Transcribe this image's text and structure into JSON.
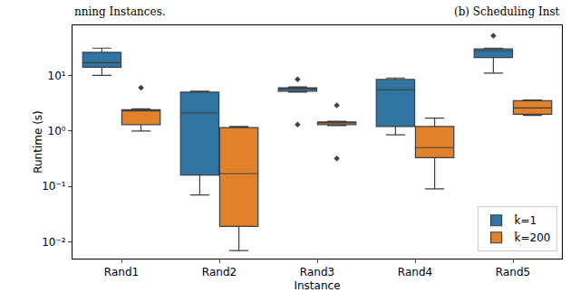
{
  "chart_data": {
    "type": "box",
    "x_label": "Instance",
    "y_label": "Runtime (s)",
    "annotations": [
      "nning Instances.",
      "(b) Scheduling Inst"
    ],
    "categories": [
      "Rand1",
      "Rand2",
      "Rand3",
      "Rand4",
      "Rand5"
    ],
    "log": "y",
    "grid": false,
    "legend": "lower right",
    "marker": "diamond",
    "ylim": [
      0.005,
      80
    ],
    "yticks": [
      {
        "value": 0.01,
        "label": "10⁻²"
      },
      {
        "value": 0.1,
        "label": "10⁻¹"
      },
      {
        "value": 1,
        "label": "10⁰"
      },
      {
        "value": 10,
        "label": "10¹"
      }
    ],
    "series": [
      {
        "name": "k̂=1",
        "color": "#3274a1",
        "low": [
          10,
          0.07,
          5.0,
          0.85,
          11
        ],
        "q1": [
          14,
          0.16,
          5.2,
          1.2,
          21
        ],
        "median": [
          17,
          2.1,
          5.8,
          5.5,
          28
        ],
        "q3": [
          26,
          5.0,
          6.0,
          8.5,
          30
        ],
        "high": [
          31,
          5.2,
          6.2,
          9.0,
          31
        ],
        "outliers": [
          [],
          [],
          [
            1.3,
            8.5
          ],
          [],
          [
            52
          ]
        ]
      },
      {
        "name": "k̂=200",
        "color": "#e1812c",
        "low": [
          1.0,
          0.007,
          1.25,
          0.09,
          1.9
        ],
        "q1": [
          1.3,
          0.019,
          1.3,
          0.33,
          2.0
        ],
        "median": [
          2.3,
          0.17,
          1.4,
          0.5,
          2.6
        ],
        "q3": [
          2.4,
          1.15,
          1.45,
          1.2,
          3.5
        ],
        "high": [
          2.5,
          1.2,
          1.5,
          1.7,
          3.6
        ],
        "outliers": [
          [
            6
          ],
          [],
          [
            0.32,
            2.9
          ],
          [],
          []
        ]
      }
    ]
  }
}
